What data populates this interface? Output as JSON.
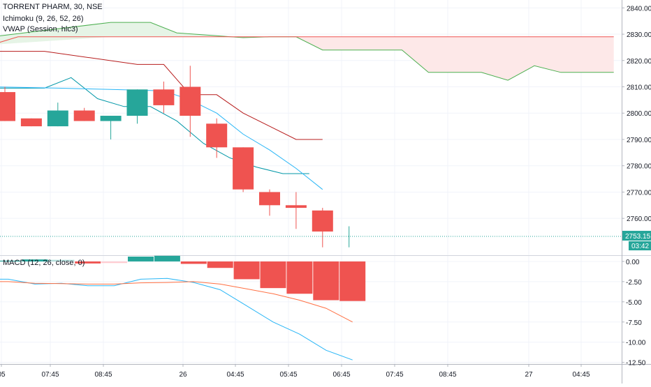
{
  "chart_data": {
    "type": "candlestick",
    "title": "TORRENT PHARM, 30, NSE",
    "legend": [
      "Ichimoku (9, 26, 52, 26)",
      "VWAP (Session, hlc3)"
    ],
    "x_ticks": [
      "05",
      "07:45",
      "08:45",
      "26",
      "04:45",
      "05:45",
      "06:45",
      "07:45",
      "08:45",
      "27",
      "04:45"
    ],
    "price_axis": {
      "ticks": [
        2760,
        2770,
        2780,
        2790,
        2800,
        2810,
        2820,
        2830,
        2840
      ],
      "range": [
        2746,
        2843
      ]
    },
    "last_price": {
      "value": "2753.15",
      "countdown": "03:42",
      "price": 2753.15
    },
    "candles": [
      {
        "o": 2808,
        "h": 2810,
        "l": 2797,
        "c": 2797
      },
      {
        "o": 2798,
        "h": 2798,
        "l": 2795,
        "c": 2795
      },
      {
        "o": 2795,
        "h": 2804,
        "l": 2795,
        "c": 2801
      },
      {
        "o": 2801,
        "h": 2802,
        "l": 2797,
        "c": 2797
      },
      {
        "o": 2797,
        "h": 2799,
        "l": 2790,
        "c": 2799
      },
      {
        "o": 2799,
        "h": 2809,
        "l": 2796,
        "c": 2809
      },
      {
        "o": 2809,
        "h": 2812,
        "l": 2800,
        "c": 2803
      },
      {
        "o": 2810,
        "h": 2818,
        "l": 2791,
        "c": 2799
      },
      {
        "o": 2796,
        "h": 2798,
        "l": 2783,
        "c": 2787
      },
      {
        "o": 2787,
        "h": 2787,
        "l": 2770,
        "c": 2771
      },
      {
        "o": 2770,
        "h": 2771,
        "l": 2761,
        "c": 2765
      },
      {
        "o": 2765,
        "h": 2770,
        "l": 2756,
        "c": 2764
      },
      {
        "o": 2763,
        "h": 2764,
        "l": 2749,
        "c": 2755
      },
      {
        "o": 2753.15,
        "h": 2757,
        "l": 2749,
        "c": 2753.15
      }
    ],
    "series": [
      {
        "name": "Ichimoku Leading Span A",
        "color": "#4caf50",
        "x": [
          -0.5,
          4,
          5.5,
          6.5,
          9,
          10,
          11,
          12,
          13,
          14,
          15,
          16,
          17,
          18,
          19,
          20,
          21,
          22,
          23
        ],
        "values": [
          2829,
          2834.5,
          2834.5,
          2830.5,
          2828.7,
          2829,
          2829,
          2824,
          2824,
          2824,
          2824,
          2815.5,
          2815.5,
          2815.5,
          2812.5,
          2818,
          2815.5,
          2815.5,
          2815.5
        ]
      },
      {
        "name": "Ichimoku Leading Span B",
        "color": "#ef5350",
        "x": [
          -0.5,
          0.5,
          23
        ],
        "values": [
          2826,
          2829,
          2829
        ]
      },
      {
        "name": "Ichimoku Base Line",
        "color": "#b71c1c",
        "x": [
          -0.5,
          1.5,
          5,
          6,
          7,
          8,
          9,
          10,
          11,
          12
        ],
        "values": [
          2823.5,
          2823.5,
          2818.5,
          2818.5,
          2807,
          2807,
          2800,
          2795,
          2790,
          2790
        ]
      },
      {
        "name": "Ichimoku Conversion Line",
        "color": "#0097a7",
        "x": [
          -0.5,
          1.5,
          2.5,
          3.5,
          4.5,
          5.5,
          6.5,
          7.5,
          8.5,
          9.5,
          10.5,
          11.5
        ],
        "values": [
          2809.5,
          2809.5,
          2813.5,
          2805.5,
          2802.5,
          2802.5,
          2797,
          2788.5,
          2783,
          2779.5,
          2777,
          2777
        ]
      },
      {
        "name": "VWAP",
        "color": "#29b6f6",
        "x": [
          -0.5,
          2,
          4,
          6,
          7,
          8,
          9,
          10,
          11,
          12
        ],
        "values": [
          2810,
          2809.5,
          2809,
          2808.5,
          2805,
          2800,
          2792,
          2786,
          2779,
          2771
        ]
      }
    ],
    "macd": {
      "legend": "MACD (12, 26, close, 0)",
      "y_ticks": [
        "0.00",
        "-2.50",
        "-5.00",
        "-7.50",
        "-10.00",
        "-12.50"
      ],
      "range": [
        -12.7,
        0.6
      ],
      "histogram": [
        0.1,
        0.25,
        0.2,
        -0.25,
        -0.2,
        0.6,
        0.7,
        -0.3,
        -0.8,
        -2.2,
        -3.3,
        -4.0,
        -4.8,
        -4.9
      ],
      "macd_line": [
        -2.2,
        -2.8,
        -2.7,
        -3.0,
        -3.0,
        -2.2,
        -2.1,
        -2.6,
        -3.5,
        -5.5,
        -7.5,
        -9.0,
        -11.0,
        -12.2
      ],
      "signal_line": [
        -2.5,
        -2.7,
        -2.75,
        -2.8,
        -2.8,
        -2.65,
        -2.6,
        -2.5,
        -2.8,
        -3.4,
        -4.0,
        -4.8,
        -5.8,
        -7.5
      ]
    },
    "colors": {
      "up": "#26a69a",
      "down": "#ef5350",
      "cloud_bear": "#fde8e8",
      "cloud_bull": "#e6f4e6",
      "macd": "#29b6f6",
      "signal": "#ff7043"
    }
  }
}
